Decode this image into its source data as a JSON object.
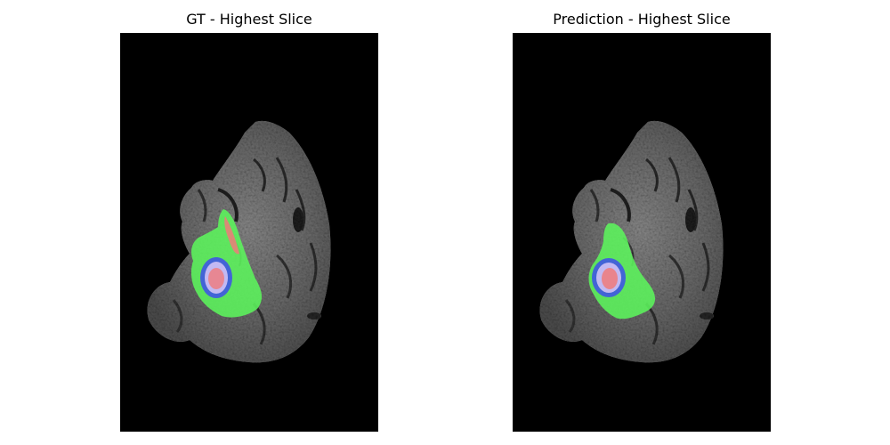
{
  "panels": [
    {
      "title": "GT - Highest Slice",
      "layers": [
        "brain-scan",
        "label-green",
        "label-red",
        "label-blue"
      ]
    },
    {
      "title": "Prediction - Highest Slice",
      "layers": [
        "brain-scan",
        "label-green",
        "label-red",
        "label-blue"
      ]
    }
  ],
  "colors": {
    "background": "#000000",
    "tissue": "#5a5a5a",
    "label_green": "#5cf55c",
    "label_red": "#f07a7a",
    "label_blue": "#3a3aff"
  }
}
